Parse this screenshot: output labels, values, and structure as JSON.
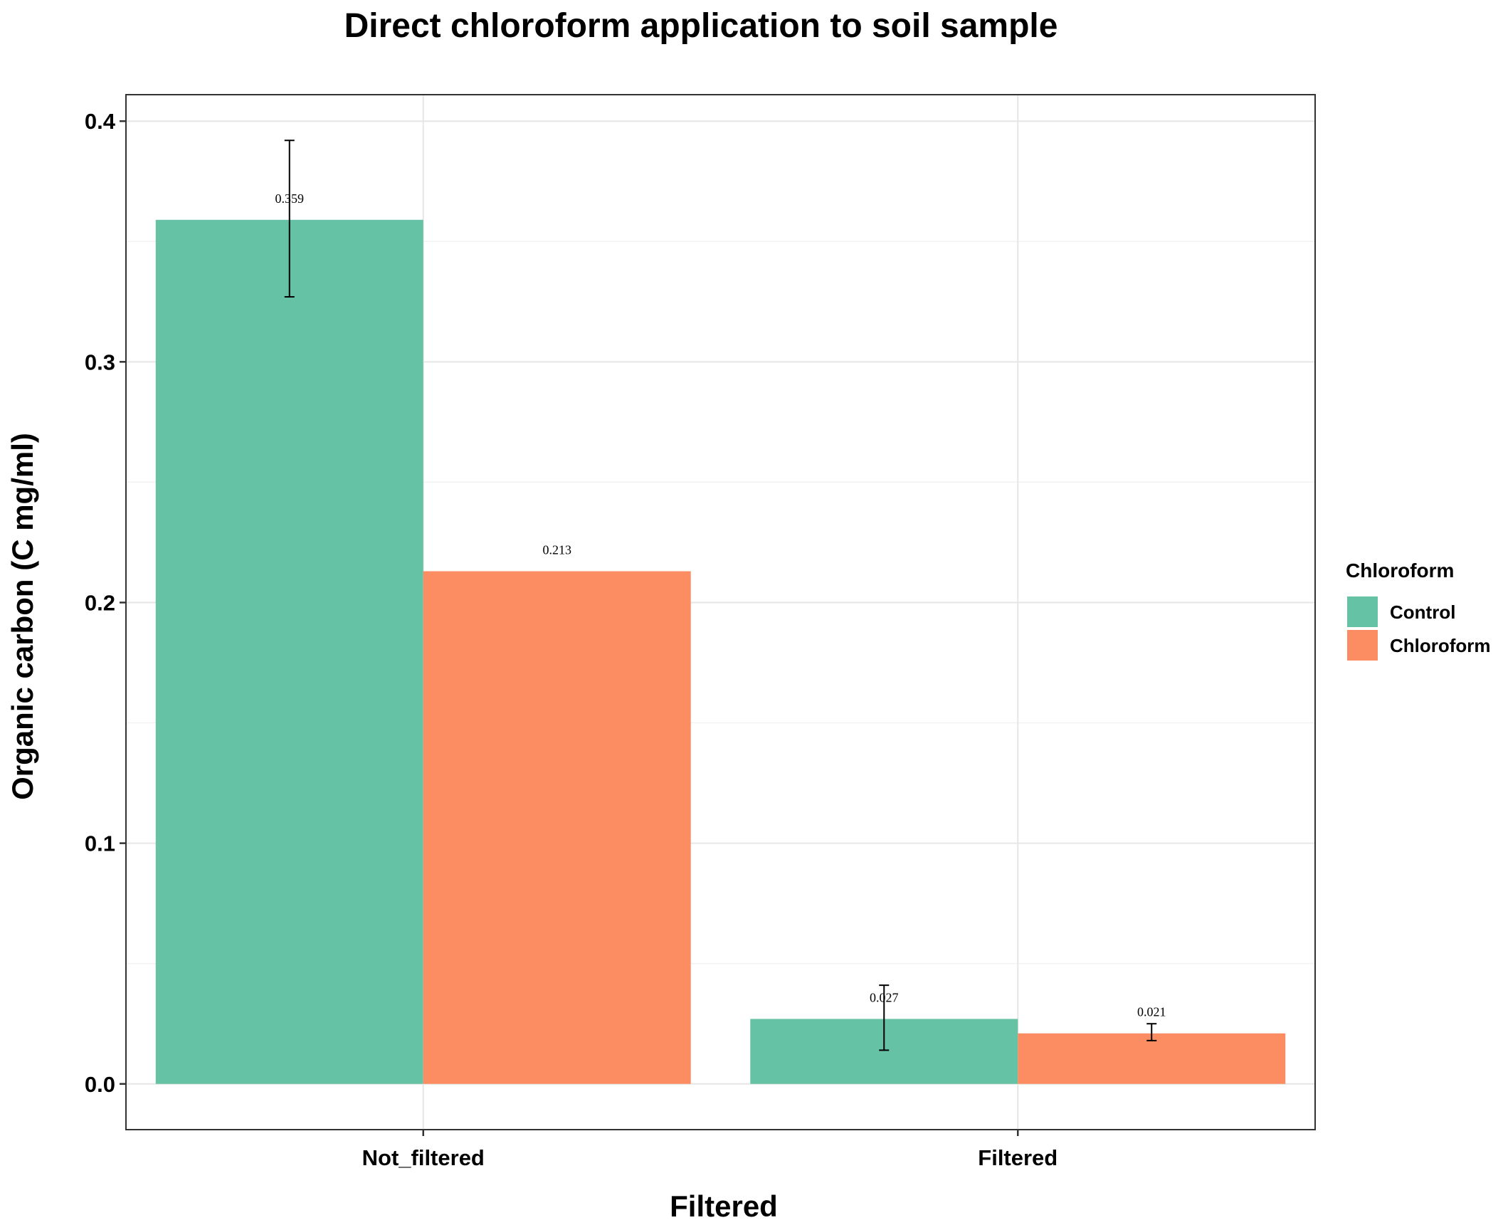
{
  "chart_data": {
    "type": "bar",
    "title": "Direct chloroform application to soil sample",
    "xlabel": "Filtered",
    "ylabel": "Organic carbon (C mg/ml)",
    "categories": [
      "Not_filtered",
      "Filtered"
    ],
    "ylim": [
      -0.019,
      0.411
    ],
    "yticks": [
      0.0,
      0.1,
      0.2,
      0.3,
      0.4
    ],
    "ytick_labels": [
      "0.0",
      "0.1",
      "0.2",
      "0.3",
      "0.4"
    ],
    "grid": true,
    "legend": {
      "title": "Chloroform",
      "position": "right"
    },
    "series": [
      {
        "name": "Control",
        "color": "#66c2a5",
        "values": [
          0.359,
          0.027
        ],
        "value_labels": [
          "0.359",
          "0.027"
        ],
        "error_low": [
          0.327,
          0.014
        ],
        "error_high": [
          0.392,
          0.041
        ]
      },
      {
        "name": "Chloroform",
        "color": "#fc8d62",
        "values": [
          0.213,
          0.021
        ],
        "value_labels": [
          "0.213",
          "0.021"
        ],
        "error_low": [
          null,
          0.018
        ],
        "error_high": [
          null,
          0.025
        ]
      }
    ]
  }
}
